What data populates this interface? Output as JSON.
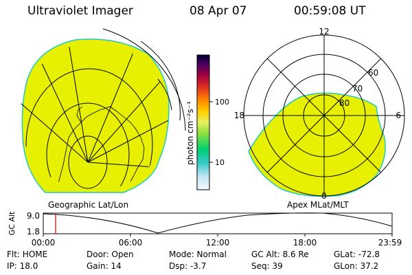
{
  "header": {
    "instrument": "Ultraviolet Imager",
    "date": "08 Apr 07",
    "time": "00:59:08 UT"
  },
  "geo_panel": {
    "label": "Geographic Lat/Lon"
  },
  "polar_panel": {
    "label": "Apex MLat/MLT",
    "ring_labels": [
      "80",
      "70",
      "60"
    ],
    "mlt_labels": {
      "top": "12",
      "left": "18",
      "right": "6",
      "bottom": "0"
    }
  },
  "colorbar": {
    "unit": "photon cm⁻²s⁻¹",
    "ticks": [
      "100",
      "10"
    ],
    "colors": [
      "#000040",
      "#3a0050",
      "#880060",
      "#c00030",
      "#e03020",
      "#ff8000",
      "#ffd000",
      "#f0f070",
      "#a0e040",
      "#00d070",
      "#30c0c0",
      "#a0e0f0",
      "#f0f0ff"
    ]
  },
  "altitude_plot": {
    "axis_title": "GC Alt",
    "y_ticks": [
      "9.0",
      "1.8"
    ],
    "x_ticks": [
      "00:00",
      "06:00",
      "12:00",
      "18:00",
      "23:59"
    ],
    "current_time_marker": "00:59",
    "marker_color": "#cc0000"
  },
  "info": {
    "filter": "Flt: HOME",
    "door": "Door: Open",
    "mode": "Mode: Normal",
    "gc_alt": "GC Alt: 8.6 Re",
    "glat": "GLat: -72.8",
    "ip": "IP: 18.0",
    "gain": "Gain: 14",
    "dsp": "Dsp:   -3.7",
    "seq": "Seq: 39",
    "glon": "GLon: 37.2"
  },
  "image_color": "#e6f000"
}
